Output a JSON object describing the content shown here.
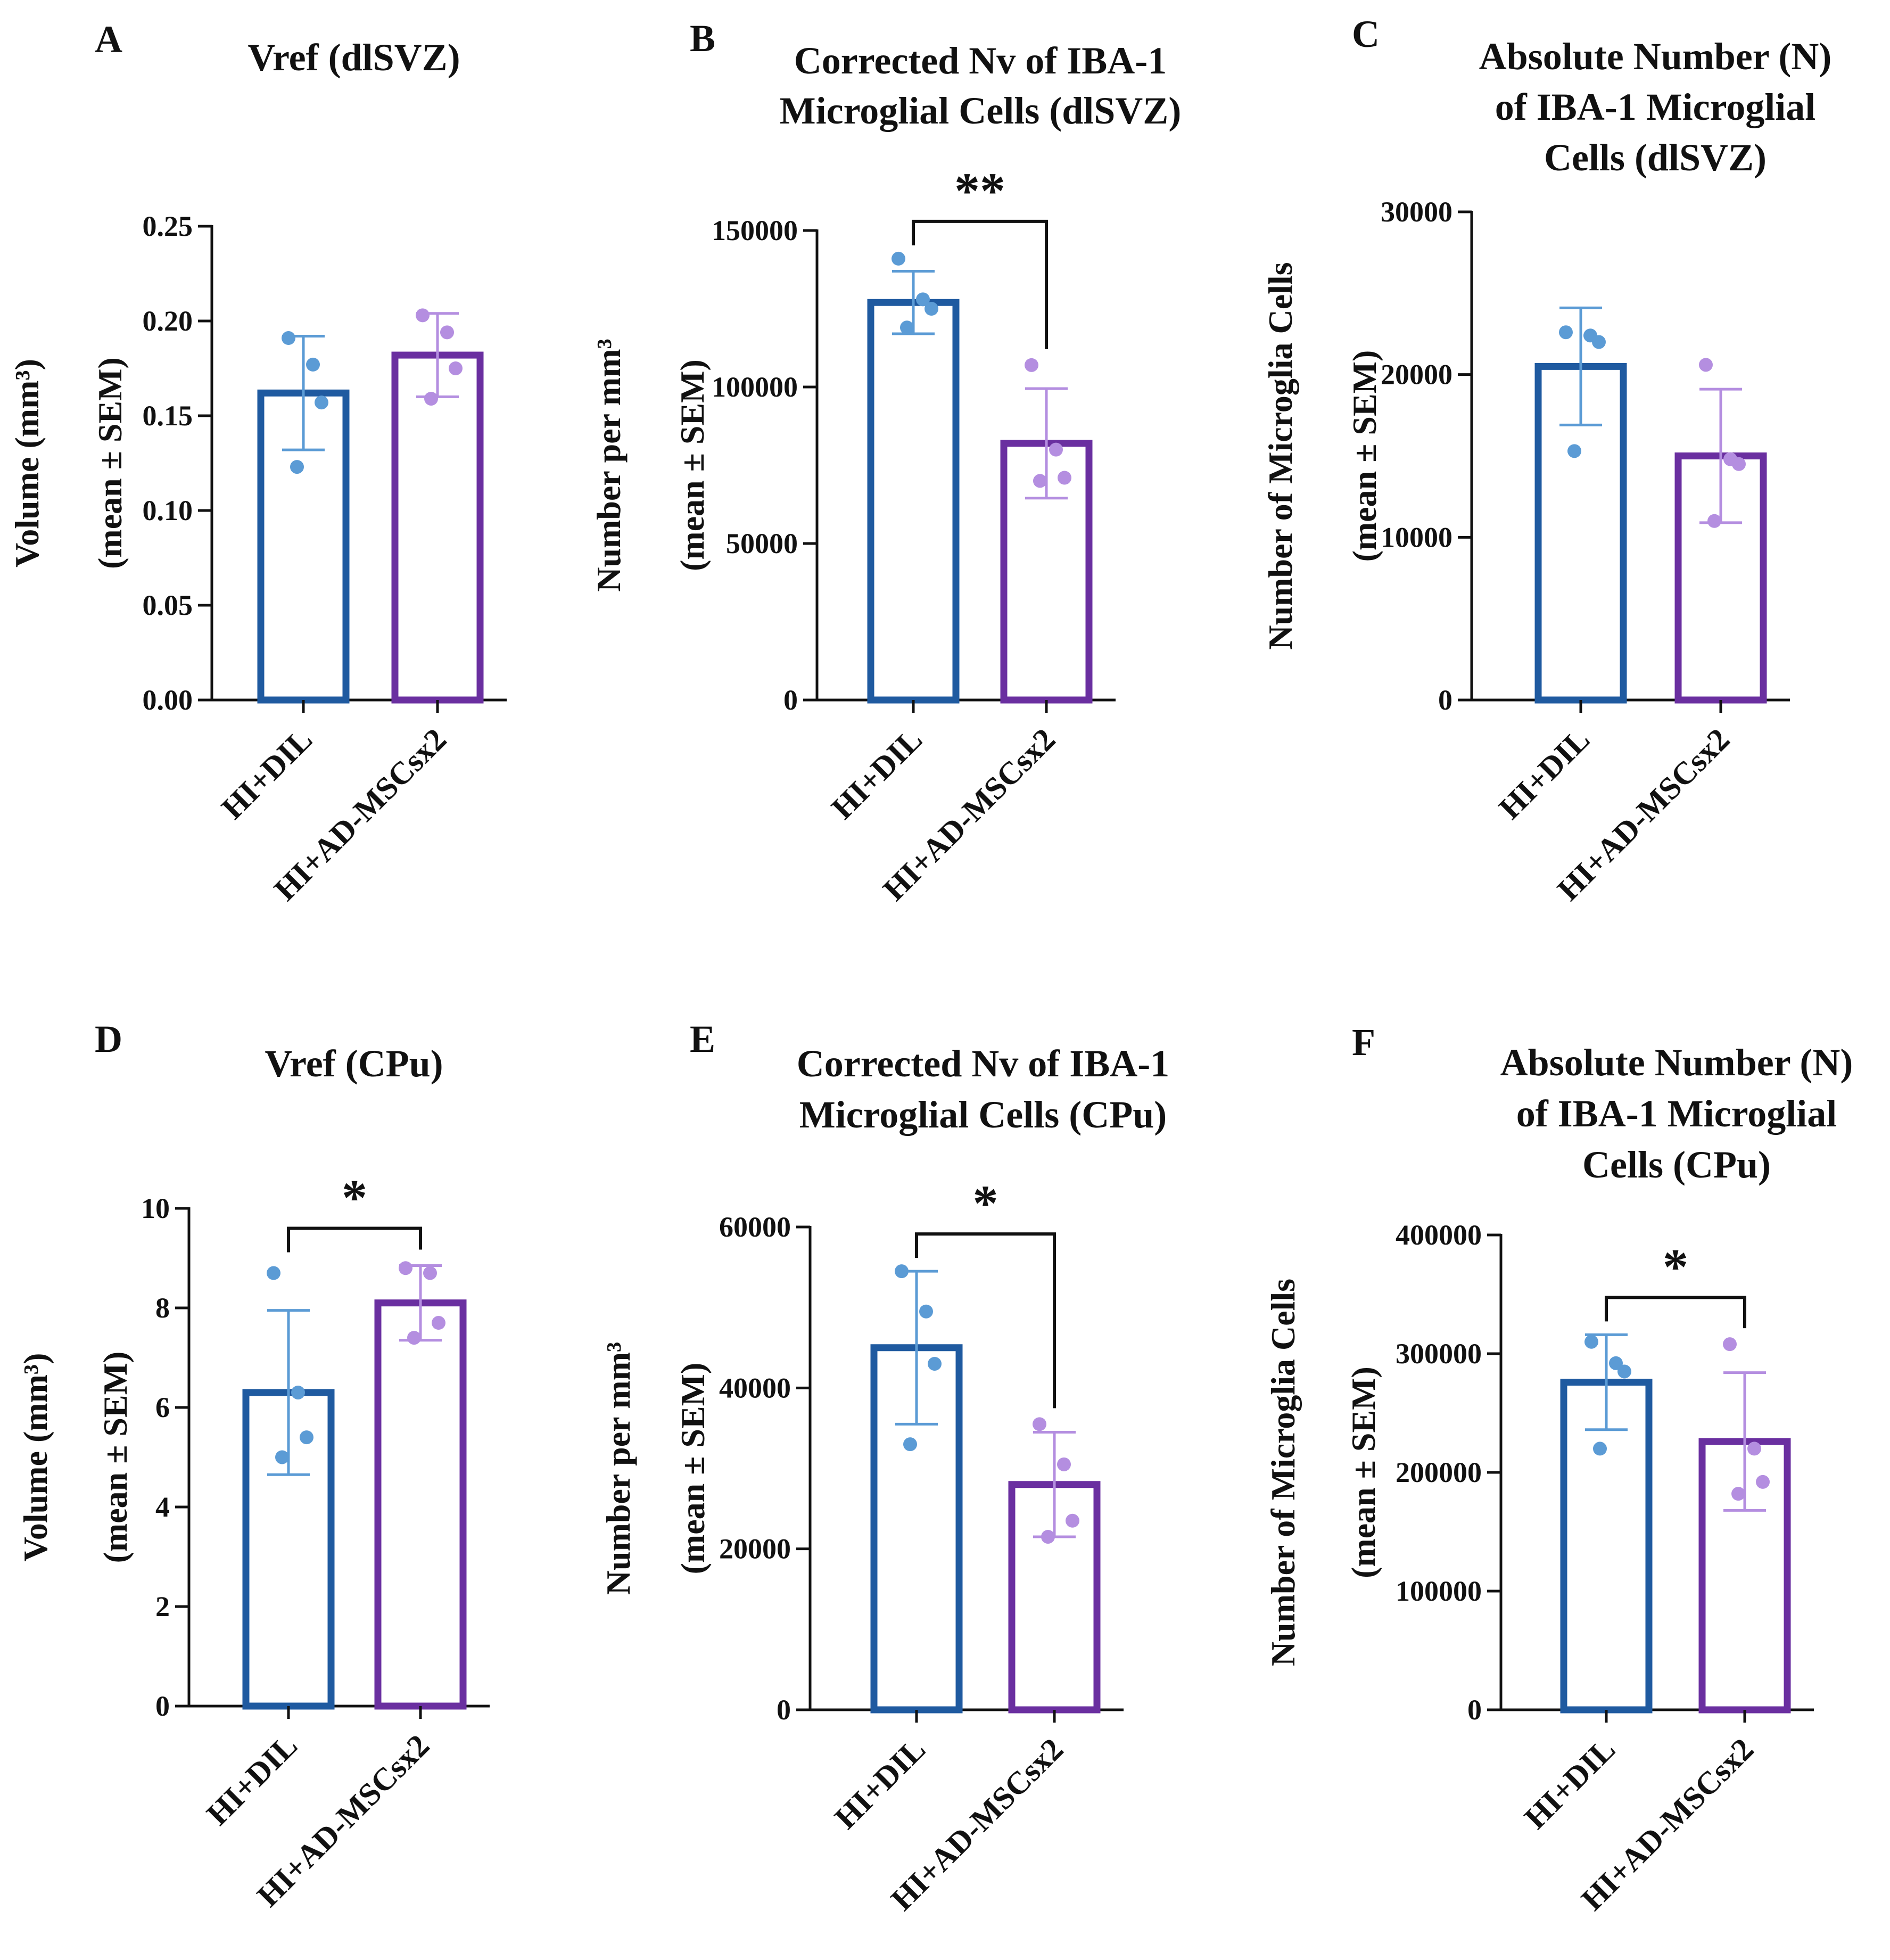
{
  "figure": {
    "x_categories": [
      "HI+DIL",
      "HI+AD-MSCsx2"
    ],
    "colors": {
      "dil_bar": "#1f5aa0",
      "dil_point": "#5b9bd5",
      "msc_bar": "#6a2fa0",
      "msc_point": "#b48ee0",
      "axis": "#111111"
    }
  },
  "chart_data": [
    {
      "panel": "A",
      "type": "bar",
      "title_lines": [
        "Vref (dlSVZ)"
      ],
      "ylabel_lines": [
        "Volume (mm³)",
        "(mean ± SEM)"
      ],
      "categories": [
        "HI+DIL",
        "HI+AD-MSCsx2"
      ],
      "values": [
        0.162,
        0.182
      ],
      "errors": [
        0.03,
        0.022
      ],
      "points": [
        [
          0.191,
          0.177,
          0.157,
          0.123
        ],
        [
          0.203,
          0.194,
          0.175,
          0.159
        ]
      ],
      "ylim": [
        0,
        0.25
      ],
      "yticks": [
        0,
        0.05,
        0.1,
        0.15,
        0.2,
        0.25
      ],
      "ytick_labels": [
        "0.00",
        "0.05",
        "0.10",
        "0.15",
        "0.20",
        "0.25"
      ],
      "significance": null
    },
    {
      "panel": "B",
      "type": "bar",
      "title_lines": [
        "Corrected Nv of IBA-1",
        "Microglial Cells (dlSVZ)"
      ],
      "ylabel_lines": [
        "Number per mm³",
        "(mean ± SEM)"
      ],
      "categories": [
        "HI+DIL",
        "HI+AD-MSCsx2"
      ],
      "values": [
        127000,
        82000
      ],
      "errors": [
        10000,
        17500
      ],
      "points": [
        [
          141000,
          128000,
          125000,
          119000
        ],
        [
          107000,
          80000,
          71000,
          70000
        ]
      ],
      "ylim": [
        0,
        150000
      ],
      "yticks": [
        0,
        50000,
        100000,
        150000
      ],
      "ytick_labels": [
        "0",
        "50000",
        "100000",
        "150000"
      ],
      "significance": "**"
    },
    {
      "panel": "C",
      "type": "bar",
      "title_lines": [
        "Absolute Number (N)",
        "of IBA-1 Microglial",
        "Cells (dlSVZ)"
      ],
      "ylabel_lines": [
        "Number of Microglia Cells",
        "(mean ± SEM)"
      ],
      "categories": [
        "HI+DIL",
        "HI+AD-MSCsx2"
      ],
      "values": [
        20500,
        15000
      ],
      "errors": [
        3600,
        4100
      ],
      "points": [
        [
          22600,
          22400,
          22000,
          15300
        ],
        [
          20600,
          14800,
          14500,
          11000
        ]
      ],
      "ylim": [
        0,
        30000
      ],
      "yticks": [
        0,
        10000,
        20000,
        30000
      ],
      "ytick_labels": [
        "0",
        "10000",
        "20000",
        "30000"
      ],
      "significance": null
    },
    {
      "panel": "D",
      "type": "bar",
      "title_lines": [
        "Vref (CPu)"
      ],
      "ylabel_lines": [
        "Volume (mm³)",
        "(mean ± SEM)"
      ],
      "categories": [
        "HI+DIL",
        "HI+AD-MSCsx2"
      ],
      "values": [
        6.3,
        8.1
      ],
      "errors": [
        1.65,
        0.75
      ],
      "points": [
        [
          8.7,
          6.3,
          5.4,
          5.0
        ],
        [
          8.8,
          8.7,
          7.7,
          7.4
        ]
      ],
      "ylim": [
        0,
        10
      ],
      "yticks": [
        0,
        2,
        4,
        6,
        8,
        10
      ],
      "ytick_labels": [
        "0",
        "2",
        "4",
        "6",
        "8",
        "10"
      ],
      "significance": "*"
    },
    {
      "panel": "E",
      "type": "bar",
      "title_lines": [
        "Corrected Nv of IBA-1",
        "Microglial Cells (CPu)"
      ],
      "ylabel_lines": [
        "Number per mm³",
        "(mean ± SEM)"
      ],
      "categories": [
        "HI+DIL",
        "HI+AD-MSCsx2"
      ],
      "values": [
        45000,
        28000
      ],
      "errors": [
        9500,
        6500
      ],
      "points": [
        [
          54500,
          49500,
          43000,
          33000
        ],
        [
          35500,
          30500,
          23500,
          21500
        ]
      ],
      "ylim": [
        0,
        60000
      ],
      "yticks": [
        0,
        20000,
        40000,
        60000
      ],
      "ytick_labels": [
        "0",
        "20000",
        "40000",
        "60000"
      ],
      "significance": "*"
    },
    {
      "panel": "F",
      "type": "bar",
      "title_lines": [
        "Absolute Number (N)",
        "of IBA-1 Microglial",
        "Cells (CPu)"
      ],
      "ylabel_lines": [
        "Number of Microglia Cells",
        "(mean ± SEM)"
      ],
      "categories": [
        "HI+DIL",
        "HI+AD-MSCsx2"
      ],
      "values": [
        276000,
        226000
      ],
      "errors": [
        40000,
        58000
      ],
      "points": [
        [
          310000,
          292000,
          285000,
          220000
        ],
        [
          308000,
          220000,
          192000,
          182000
        ]
      ],
      "ylim": [
        0,
        400000
      ],
      "yticks": [
        0,
        100000,
        200000,
        300000,
        400000
      ],
      "ytick_labels": [
        "0",
        "100000",
        "200000",
        "300000",
        "400000"
      ],
      "significance": "*"
    }
  ]
}
